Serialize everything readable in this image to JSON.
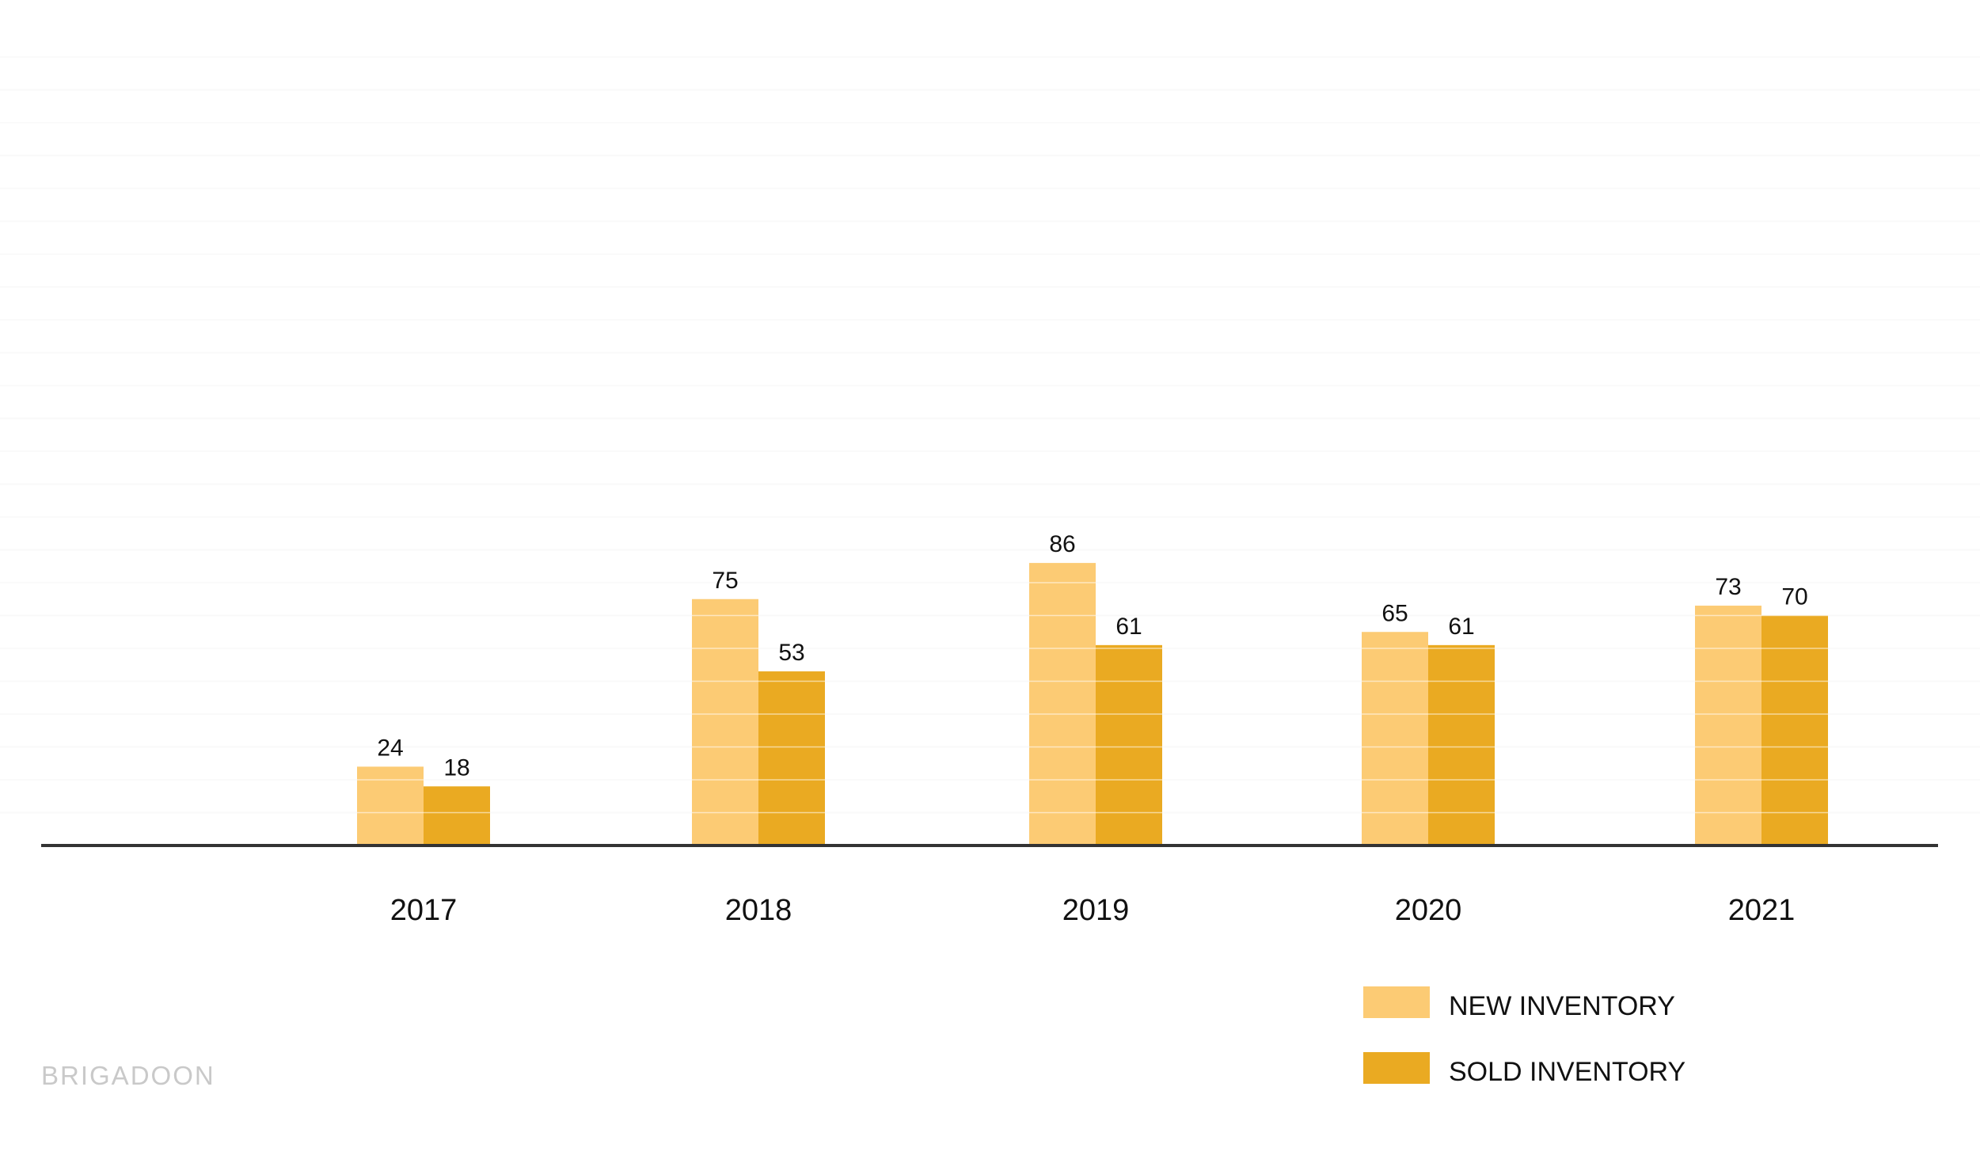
{
  "chart_data": {
    "type": "bar",
    "categories": [
      "2017",
      "2018",
      "2019",
      "2020",
      "2021"
    ],
    "series": [
      {
        "name": "NEW INVENTORY",
        "values": [
          24,
          75,
          86,
          65,
          73
        ],
        "color": "#FCCB74"
      },
      {
        "name": "SOLD INVENTORY",
        "values": [
          18,
          53,
          61,
          61,
          70
        ],
        "color": "#EAAA22"
      }
    ],
    "title": "",
    "xlabel": "",
    "ylabel": "",
    "ylim": [
      0,
      240
    ],
    "grid": true,
    "gridline_step": 10,
    "legend_placement": "bottom-right",
    "baseline_color": "#333333",
    "gridline_color": "#F2F2F2"
  },
  "watermark": {
    "text": "BRIGADOON",
    "color": "#C9C9C9"
  }
}
